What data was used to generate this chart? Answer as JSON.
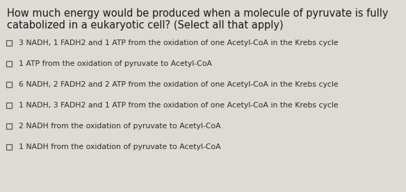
{
  "background_color": "#dedad4",
  "title_lines": [
    "How much energy would be produced when a molecule of pyruvate is fully",
    "catabolized in a eukaryotic cell? (Select all that apply)"
  ],
  "title_fontsize": 10.5,
  "title_color": "#1a1a1a",
  "options": [
    "3 NADH, 1 FADH2 and 1 ATP from the oxidation of one Acetyl-CoA in the Krebs cycle",
    "1 ATP from the oxidation of pyruvate to Acetyl-CoA",
    "6 NADH, 2 FADH2 and 2 ATP from the oxidation of one Acetyl-CoA in the Krebs cycle",
    "1 NADH, 3 FADH2 and 1 ATP from the oxidation of one Acetyl-CoA in the Krebs cycle",
    "2 NADH from the oxidation of pyruvate to Acetyl-CoA",
    "1 NADH from the oxidation of pyruvate to Acetyl-CoA"
  ],
  "option_fontsize": 7.8,
  "option_color": "#2a2a2a",
  "checkbox_color": "#555555",
  "checkbox_linewidth": 0.9
}
